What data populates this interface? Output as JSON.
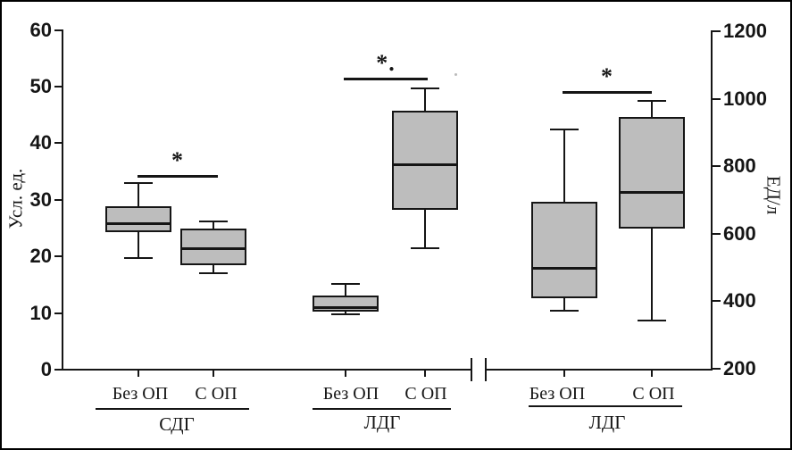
{
  "figure": {
    "background": "#ffffff",
    "border_color": "#000000",
    "box_fill": "#bdbdbd",
    "line_color": "#151515"
  },
  "chart_data": {
    "type": "boxplot",
    "title": "",
    "grid": false,
    "left_axis": {
      "label": "Усл. ед.",
      "range": [
        0,
        60
      ],
      "ticks": [
        60,
        50,
        40,
        30,
        20,
        10,
        0
      ]
    },
    "right_axis": {
      "label": "ЕД/л",
      "range": [
        200,
        1200
      ],
      "ticks": [
        1200,
        1000,
        800,
        600,
        400,
        200
      ]
    },
    "groups": [
      {
        "name": "СДГ",
        "axis": "left",
        "significance": "*",
        "boxes": [
          {
            "label": "Без ОП",
            "whisker_low": 19.7,
            "q1": 24.3,
            "median": 25.9,
            "q3": 28.9,
            "whisker_high": 33.0
          },
          {
            "label": "С ОП",
            "whisker_low": 17.1,
            "q1": 18.4,
            "median": 21.4,
            "q3": 24.9,
            "whisker_high": 26.2
          }
        ]
      },
      {
        "name": "ЛДГ",
        "axis": "left",
        "significance": "*.",
        "boxes": [
          {
            "label": "Без ОП",
            "whisker_low": 9.8,
            "q1": 10.3,
            "median": 11.0,
            "q3": 13.1,
            "whisker_high": 15.1
          },
          {
            "label": "С ОП",
            "whisker_low": 21.5,
            "q1": 28.3,
            "median": 36.2,
            "q3": 45.7,
            "whisker_high": 49.7
          }
        ]
      },
      {
        "name": "ЛДГ",
        "axis": "right",
        "significance": "*",
        "boxes": [
          {
            "label": "Без ОП",
            "whisker_low": 372,
            "q1": 410,
            "median": 500,
            "q3": 695,
            "whisker_high": 910
          },
          {
            "label": "С ОП",
            "whisker_low": 343,
            "q1": 615,
            "median": 725,
            "q3": 945,
            "whisker_high": 993
          }
        ]
      }
    ]
  }
}
